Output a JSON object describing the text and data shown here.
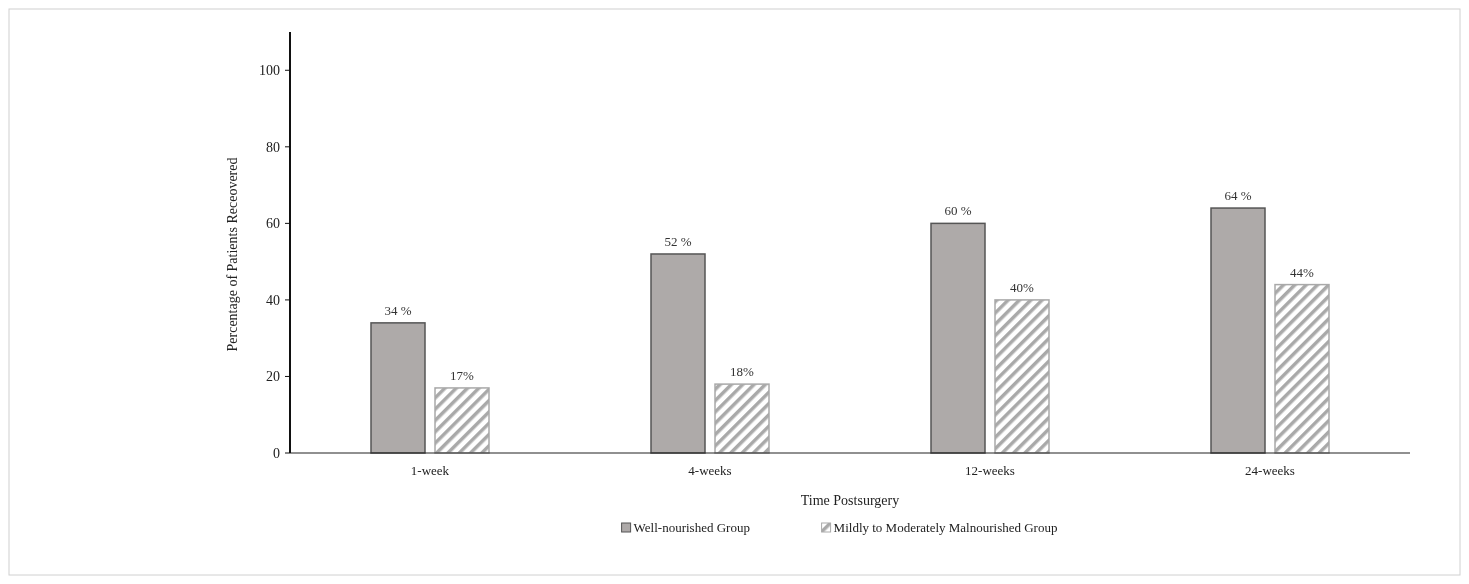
{
  "chart_data": {
    "type": "bar",
    "xlabel": "Time Postsurgery",
    "ylabel": "Percentage of Patients Receovered",
    "categories": [
      "1-week",
      "4-weeks",
      "12-weeks",
      "24-weeks"
    ],
    "series": [
      {
        "name": "Well-nourished Group",
        "color": "#aeaaa9",
        "values": [
          34,
          52,
          60,
          64
        ],
        "value_labels": [
          "34 %",
          "52 %",
          "60 %",
          "64 %"
        ]
      },
      {
        "name": "Mildly to Moderately Malnourished Group",
        "color": "#a9a9a9",
        "values": [
          17,
          18,
          40,
          44
        ],
        "value_labels": [
          "17%",
          "18%",
          "40%",
          "44%"
        ]
      }
    ],
    "ylim": [
      0,
      110
    ],
    "yticks": [
      0,
      20,
      40,
      60,
      80,
      100
    ],
    "legend": "bottom",
    "grid": false
  }
}
